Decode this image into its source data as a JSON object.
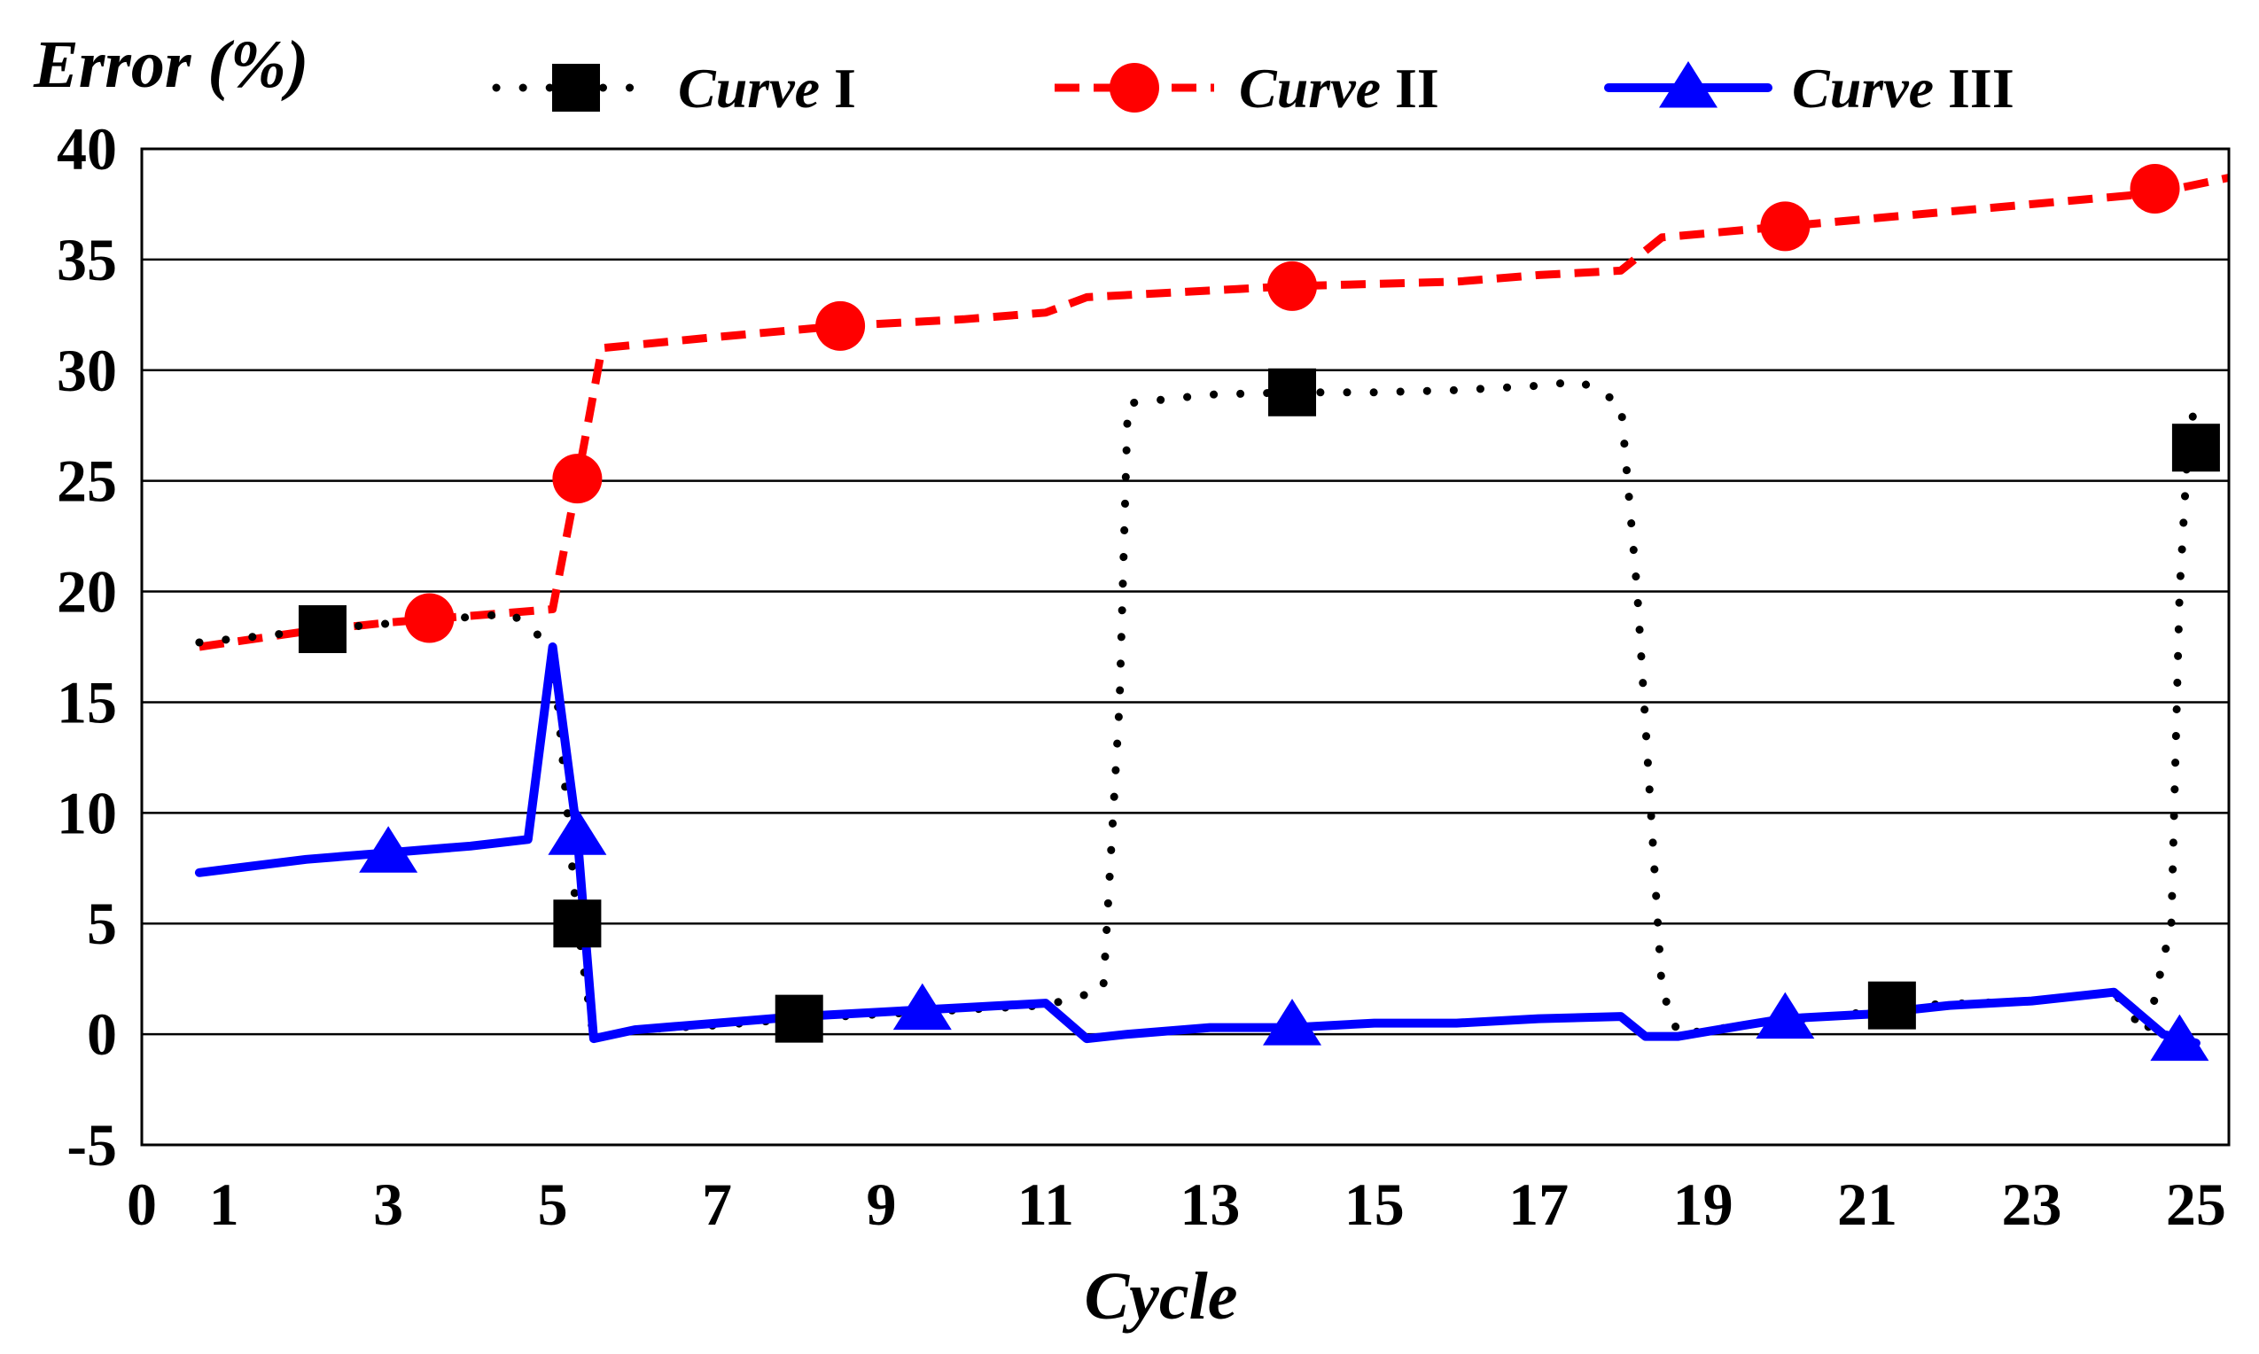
{
  "chart_data": {
    "type": "line",
    "title": "",
    "ylabel": "Error (%)",
    "xlabel": "Cycle",
    "xlim": [
      0,
      25.4
    ],
    "ylim": [
      -5,
      40
    ],
    "x_ticks": [
      "0",
      "1",
      "3",
      "5",
      "7",
      "9",
      "11",
      "13",
      "15",
      "17",
      "19",
      "21",
      "23",
      "25"
    ],
    "x_tick_values": [
      0,
      1,
      3,
      5,
      7,
      9,
      11,
      13,
      15,
      17,
      19,
      21,
      23,
      25
    ],
    "y_ticks": [
      "40",
      "35",
      "30",
      "25",
      "20",
      "15",
      "10",
      "5",
      "0",
      "-5"
    ],
    "y_tick_values": [
      40,
      35,
      30,
      25,
      20,
      15,
      10,
      5,
      0,
      -5
    ],
    "grid": true,
    "legend_position": "top",
    "series": [
      {
        "name": "Curve I",
        "name_italic": "Curve",
        "name_numeral": "I",
        "color": "#000000",
        "line_style": "dotted",
        "marker": "square",
        "points": [
          [
            0.7,
            17.7
          ],
          [
            2.5,
            18.4
          ],
          [
            4.5,
            19.0
          ],
          [
            5.0,
            17.5
          ],
          [
            5.3,
            5.0
          ],
          [
            5.5,
            -0.2
          ],
          [
            6.0,
            0.2
          ],
          [
            7.0,
            0.4
          ],
          [
            8.0,
            0.7
          ],
          [
            9.0,
            0.9
          ],
          [
            10.0,
            1.1
          ],
          [
            11.0,
            1.3
          ],
          [
            11.7,
            2.0
          ],
          [
            11.9,
            15.0
          ],
          [
            12.0,
            28.5
          ],
          [
            13.0,
            28.9
          ],
          [
            14.0,
            29.0
          ],
          [
            15.0,
            29.0
          ],
          [
            16.0,
            29.1
          ],
          [
            17.0,
            29.3
          ],
          [
            17.5,
            29.5
          ],
          [
            18.0,
            28.5
          ],
          [
            18.2,
            20.0
          ],
          [
            18.5,
            2.0
          ],
          [
            18.7,
            0.0
          ],
          [
            19.5,
            0.4
          ],
          [
            21.0,
            1.0
          ],
          [
            21.5,
            1.3
          ],
          [
            23.0,
            1.5
          ],
          [
            24.0,
            1.9
          ],
          [
            24.4,
            0.0
          ],
          [
            24.7,
            5.0
          ],
          [
            24.8,
            20.0
          ],
          [
            24.9,
            26.5
          ],
          [
            25.0,
            28.8
          ]
        ],
        "marker_points": [
          [
            2.2,
            18.3
          ],
          [
            5.3,
            5.0
          ],
          [
            8.0,
            0.7
          ],
          [
            14.0,
            29.0
          ],
          [
            21.3,
            1.3
          ],
          [
            25.0,
            26.5
          ]
        ]
      },
      {
        "name": "Curve II",
        "name_italic": "Curve",
        "name_numeral": "II",
        "color": "#ff0000",
        "line_style": "dashed",
        "marker": "circle",
        "points": [
          [
            0.7,
            17.5
          ],
          [
            2.0,
            18.2
          ],
          [
            3.0,
            18.6
          ],
          [
            4.0,
            18.9
          ],
          [
            5.0,
            19.2
          ],
          [
            5.3,
            25.0
          ],
          [
            5.6,
            31.0
          ],
          [
            7.0,
            31.5
          ],
          [
            8.5,
            32.0
          ],
          [
            10.0,
            32.3
          ],
          [
            11.0,
            32.6
          ],
          [
            11.5,
            33.3
          ],
          [
            13.0,
            33.6
          ],
          [
            14.0,
            33.8
          ],
          [
            15.0,
            33.9
          ],
          [
            16.0,
            34.0
          ],
          [
            17.0,
            34.3
          ],
          [
            18.0,
            34.5
          ],
          [
            18.5,
            36.0
          ],
          [
            20.0,
            36.5
          ],
          [
            21.5,
            37.0
          ],
          [
            23.0,
            37.5
          ],
          [
            24.5,
            38.0
          ],
          [
            25.4,
            38.7
          ]
        ],
        "marker_points": [
          [
            3.5,
            18.8
          ],
          [
            5.3,
            25.1
          ],
          [
            8.5,
            32.0
          ],
          [
            14.0,
            33.8
          ],
          [
            20.0,
            36.5
          ],
          [
            24.5,
            38.2
          ]
        ]
      },
      {
        "name": "Curve III",
        "name_italic": "Curve",
        "name_numeral": "III",
        "color": "#0000ff",
        "line_style": "solid",
        "marker": "triangle",
        "points": [
          [
            0.7,
            7.3
          ],
          [
            2.0,
            7.9
          ],
          [
            3.0,
            8.2
          ],
          [
            4.0,
            8.5
          ],
          [
            4.7,
            8.8
          ],
          [
            5.0,
            17.5
          ],
          [
            5.3,
            9.0
          ],
          [
            5.5,
            -0.2
          ],
          [
            6.0,
            0.2
          ],
          [
            7.0,
            0.5
          ],
          [
            8.0,
            0.8
          ],
          [
            9.0,
            1.0
          ],
          [
            10.0,
            1.2
          ],
          [
            11.0,
            1.4
          ],
          [
            11.5,
            -0.2
          ],
          [
            12.0,
            0.0
          ],
          [
            13.0,
            0.3
          ],
          [
            14.0,
            0.3
          ],
          [
            15.0,
            0.5
          ],
          [
            16.0,
            0.5
          ],
          [
            17.0,
            0.7
          ],
          [
            18.0,
            0.8
          ],
          [
            18.3,
            -0.1
          ],
          [
            18.7,
            -0.1
          ],
          [
            19.5,
            0.4
          ],
          [
            20.0,
            0.7
          ],
          [
            21.0,
            0.9
          ],
          [
            22.0,
            1.3
          ],
          [
            23.0,
            1.5
          ],
          [
            24.0,
            1.9
          ],
          [
            24.6,
            0.0
          ],
          [
            25.0,
            -0.4
          ]
        ],
        "marker_points": [
          [
            3.0,
            8.2
          ],
          [
            5.3,
            9.0
          ],
          [
            9.5,
            1.1
          ],
          [
            14.0,
            0.4
          ],
          [
            20.0,
            0.7
          ],
          [
            24.8,
            -0.3
          ]
        ]
      }
    ]
  }
}
